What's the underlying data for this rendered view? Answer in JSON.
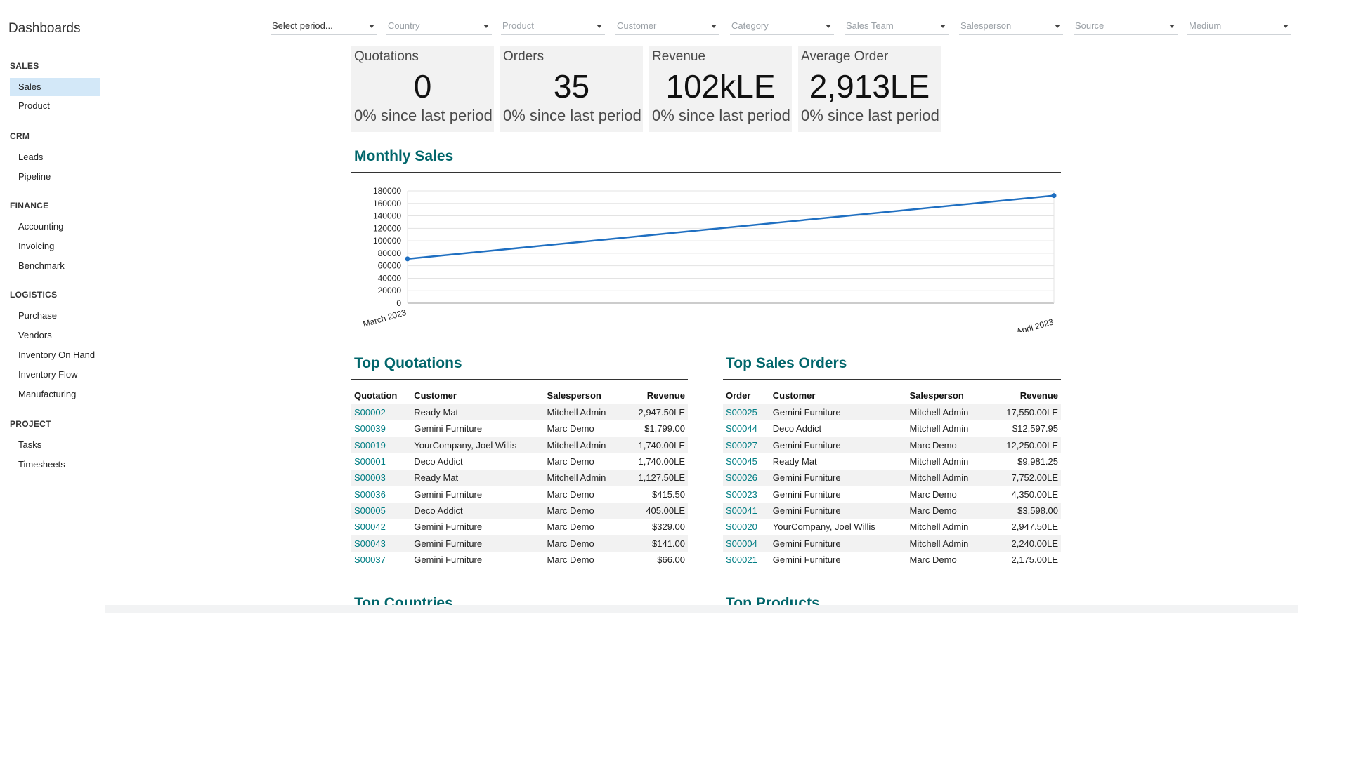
{
  "app": {
    "title": "Dashboards"
  },
  "filters": [
    {
      "label": "Select period..."
    },
    {
      "label": "Country"
    },
    {
      "label": "Product"
    },
    {
      "label": "Customer"
    },
    {
      "label": "Category"
    },
    {
      "label": "Sales Team"
    },
    {
      "label": "Salesperson"
    },
    {
      "label": "Source"
    },
    {
      "label": "Medium"
    }
  ],
  "sidebar": {
    "sections": [
      {
        "title": "SALES",
        "items": [
          "Sales",
          "Product"
        ]
      },
      {
        "title": "CRM",
        "items": [
          "Leads",
          "Pipeline"
        ]
      },
      {
        "title": "FINANCE",
        "items": [
          "Accounting",
          "Invoicing",
          "Benchmark"
        ]
      },
      {
        "title": "LOGISTICS",
        "items": [
          "Purchase",
          "Vendors",
          "Inventory On Hand",
          "Inventory Flow",
          "Manufacturing"
        ]
      },
      {
        "title": "PROJECT",
        "items": [
          "Tasks",
          "Timesheets"
        ]
      }
    ],
    "active_item": "Sales"
  },
  "kpis": [
    {
      "title": "Quotations",
      "value": "0",
      "sub": "0% since last period"
    },
    {
      "title": "Orders",
      "value": "35",
      "sub": "0% since last period"
    },
    {
      "title": "Revenue",
      "value": "102kLE",
      "sub": "0% since last period"
    },
    {
      "title": "Average Order",
      "value": "2,913LE",
      "sub": "0% since last period"
    }
  ],
  "monthly_sales": {
    "title": "Monthly Sales"
  },
  "chart_data": {
    "type": "line",
    "x": [
      "March 2023",
      "April 2023"
    ],
    "series": [
      {
        "values": [
          71000,
          172500
        ]
      }
    ],
    "ylim": [
      0,
      180000
    ],
    "yticks": [
      0,
      20000,
      40000,
      60000,
      80000,
      100000,
      120000,
      140000,
      160000,
      180000
    ],
    "grid": true,
    "line_color": "#1f6fc1"
  },
  "top_quotations": {
    "title": "Top Quotations",
    "headers": [
      "Quotation",
      "Customer",
      "Salesperson",
      "Revenue"
    ],
    "rows": [
      [
        "S00002",
        "Ready Mat",
        "Mitchell Admin",
        "2,947.50LE"
      ],
      [
        "S00039",
        "Gemini Furniture",
        "Marc Demo",
        "$1,799.00"
      ],
      [
        "S00019",
        "YourCompany, Joel Willis",
        "Mitchell Admin",
        "1,740.00LE"
      ],
      [
        "S00001",
        "Deco Addict",
        "Marc Demo",
        "1,740.00LE"
      ],
      [
        "S00003",
        "Ready Mat",
        "Mitchell Admin",
        "1,127.50LE"
      ],
      [
        "S00036",
        "Gemini Furniture",
        "Marc Demo",
        "$415.50"
      ],
      [
        "S00005",
        "Deco Addict",
        "Marc Demo",
        "405.00LE"
      ],
      [
        "S00042",
        "Gemini Furniture",
        "Marc Demo",
        "$329.00"
      ],
      [
        "S00043",
        "Gemini Furniture",
        "Marc Demo",
        "$141.00"
      ],
      [
        "S00037",
        "Gemini Furniture",
        "Marc Demo",
        "$66.00"
      ]
    ]
  },
  "top_sales_orders": {
    "title": "Top Sales Orders",
    "headers": [
      "Order",
      "Customer",
      "Salesperson",
      "Revenue"
    ],
    "rows": [
      [
        "S00025",
        "Gemini Furniture",
        "Mitchell Admin",
        "17,550.00LE"
      ],
      [
        "S00044",
        "Deco Addict",
        "Mitchell Admin",
        "$12,597.95"
      ],
      [
        "S00027",
        "Gemini Furniture",
        "Marc Demo",
        "12,250.00LE"
      ],
      [
        "S00045",
        "Ready Mat",
        "Mitchell Admin",
        "$9,981.25"
      ],
      [
        "S00026",
        "Gemini Furniture",
        "Mitchell Admin",
        "7,752.00LE"
      ],
      [
        "S00023",
        "Gemini Furniture",
        "Marc Demo",
        "4,350.00LE"
      ],
      [
        "S00041",
        "Gemini Furniture",
        "Marc Demo",
        "$3,598.00"
      ],
      [
        "S00020",
        "YourCompany, Joel Willis",
        "Mitchell Admin",
        "2,947.50LE"
      ],
      [
        "S00004",
        "Gemini Furniture",
        "Mitchell Admin",
        "2,240.00LE"
      ],
      [
        "S00021",
        "Gemini Furniture",
        "Marc Demo",
        "2,175.00LE"
      ]
    ]
  },
  "top_countries": {
    "title": "Top Countries"
  },
  "top_products": {
    "title": "Top Products"
  }
}
